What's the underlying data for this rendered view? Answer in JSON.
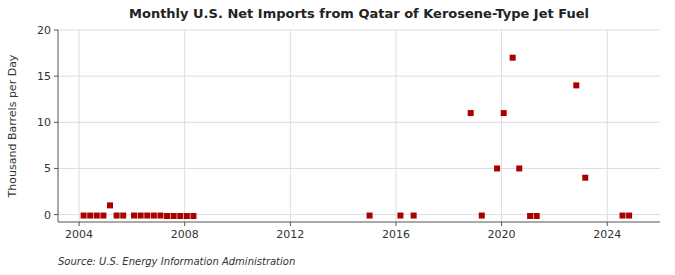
{
  "chart_data": {
    "type": "scatter",
    "title": "Monthly U.S. Net Imports from Qatar of Kerosene-Type Jet Fuel",
    "ylabel": "Thousand Barrels per Day",
    "annotations": [
      "Source: U.S. Energy Information Administration"
    ],
    "color": "#aa0000",
    "marker": "square",
    "grid": true,
    "xlim": [
      2003.2,
      2026.0
    ],
    "ylim": [
      -0.8,
      20
    ],
    "yticks": [
      0,
      5,
      10,
      15,
      20
    ],
    "xticks": [
      2004,
      2008,
      2012,
      2016,
      2020,
      2024
    ],
    "x": [
      2004.17,
      2004.42,
      2004.67,
      2004.92,
      2005.17,
      2005.42,
      2005.67,
      2006.08,
      2006.33,
      2006.58,
      2006.83,
      2007.08,
      2007.33,
      2007.58,
      2007.83,
      2008.08,
      2008.33,
      2015.0,
      2016.17,
      2016.67,
      2018.83,
      2019.25,
      2019.83,
      2020.08,
      2020.42,
      2020.67,
      2021.08,
      2021.33,
      2022.83,
      2023.17,
      2024.58,
      2024.83
    ],
    "values": [
      -0.1,
      -0.1,
      -0.1,
      -0.1,
      1.0,
      -0.1,
      -0.1,
      -0.1,
      -0.1,
      -0.1,
      -0.1,
      -0.1,
      -0.15,
      -0.15,
      -0.15,
      -0.15,
      -0.15,
      -0.1,
      -0.1,
      -0.1,
      11.0,
      -0.1,
      5.0,
      11.0,
      17.0,
      5.0,
      -0.15,
      -0.15,
      14.0,
      4.0,
      -0.1,
      -0.1
    ]
  }
}
